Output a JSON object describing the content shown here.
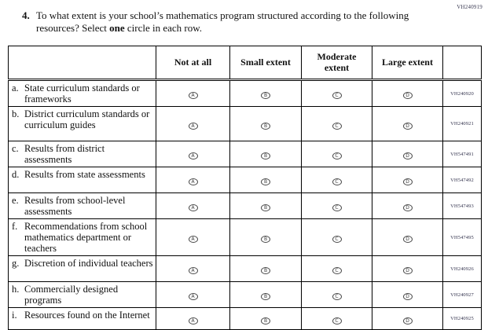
{
  "page": {
    "corner_code": "VH240919"
  },
  "question": {
    "number": "4.",
    "text_before_bold": "To what extent is your school’s mathematics program structured according to the following resources? Select ",
    "bold_word": "one",
    "text_after_bold": " circle in each row."
  },
  "table": {
    "columns": [
      "Not at all",
      "Small extent",
      "Moderate extent",
      "Large extent"
    ],
    "options": [
      "A",
      "B",
      "C",
      "D"
    ],
    "rows": [
      {
        "letter": "a.",
        "label": "State curriculum standards or frameworks",
        "code": "VH240920"
      },
      {
        "letter": "b.",
        "label": "District curriculum standards or curriculum guides",
        "code": "VH240921"
      },
      {
        "letter": "c.",
        "label": "Results from district assessments",
        "code": "VH547491"
      },
      {
        "letter": "d.",
        "label": "Results from state assessments",
        "code": "VH547492"
      },
      {
        "letter": "e.",
        "label": "Results from school-level assessments",
        "code": "VH547493"
      },
      {
        "letter": "f.",
        "label": "Recommendations from school mathematics department or teachers",
        "code": "VH547495"
      },
      {
        "letter": "g.",
        "label": "Discretion of individual teachers",
        "code": "VH240926"
      },
      {
        "letter": "h.",
        "label": "Commercially designed programs",
        "code": "VH240927"
      },
      {
        "letter": "i.",
        "label": "Resources found on the Internet",
        "code": "VH240925"
      }
    ],
    "colors": {
      "border": "#000000",
      "text": "#111111"
    }
  }
}
